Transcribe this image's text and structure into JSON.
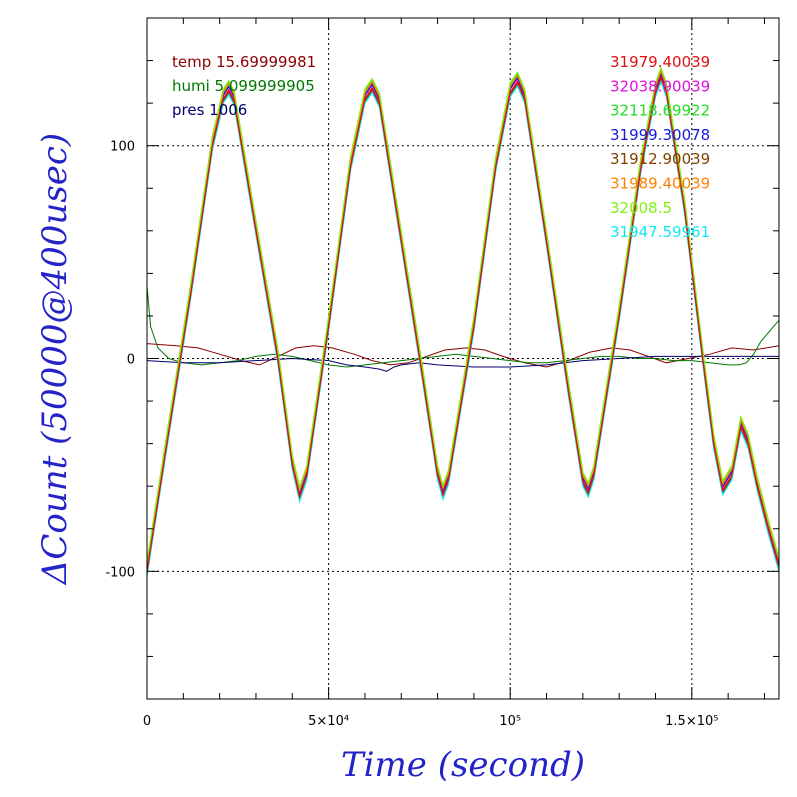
{
  "chart_data": {
    "type": "line",
    "xlabel": "Time (second)",
    "ylabel": "ΔCount (50000@400usec)",
    "xlim": [
      0,
      174000
    ],
    "ylim": [
      -160,
      160
    ],
    "x_ticks": [
      {
        "value": 0,
        "label": "0"
      },
      {
        "value": 50000,
        "label": "5×10⁴"
      },
      {
        "value": 100000,
        "label": "10⁵"
      },
      {
        "value": 150000,
        "label": "1.5×10⁵"
      }
    ],
    "y_ticks": [
      {
        "value": -100,
        "label": "-100"
      },
      {
        "value": 0,
        "label": "0"
      },
      {
        "value": 100,
        "label": "100"
      }
    ],
    "grid": "dotted at major ticks",
    "environment_legend": [
      {
        "label": "temp 15.69999981",
        "color": "#8b0000"
      },
      {
        "label": "humi 5.099999905",
        "color": "#007800"
      },
      {
        "label": "pres 1006",
        "color": "#00006e"
      }
    ],
    "counter_legend": [
      {
        "label": "31979.40039",
        "color": "#e01010"
      },
      {
        "label": "32038.90039",
        "color": "#e010e0"
      },
      {
        "label": "32118.69922",
        "color": "#20e020"
      },
      {
        "label": "31999.30078",
        "color": "#1818d8"
      },
      {
        "label": "31912.90039",
        "color": "#804000"
      },
      {
        "label": "31989.40039",
        "color": "#ff8000"
      },
      {
        "label": "32008.5",
        "color": "#80f010"
      },
      {
        "label": "31947.59961",
        "color": "#10e8f0"
      }
    ],
    "main_curve": {
      "x": [
        0,
        5000,
        12000,
        18000,
        21000,
        22500,
        24000,
        30000,
        36000,
        40000,
        42000,
        44000,
        50000,
        56000,
        60000,
        62000,
        64000,
        70000,
        76000,
        80000,
        81500,
        83000,
        90000,
        96000,
        100000,
        102000,
        104000,
        110000,
        116000,
        120000,
        121500,
        123000,
        130000,
        136000,
        140000,
        141500,
        143000,
        148000,
        153000,
        156000,
        158500,
        161000,
        163500,
        165500,
        168000,
        171000,
        174000
      ],
      "y": [
        -100,
        -45,
        30,
        100,
        122,
        126,
        121,
        60,
        0,
        -50,
        -65,
        -55,
        15,
        90,
        122,
        127,
        120,
        55,
        -10,
        -55,
        -64,
        -57,
        15,
        90,
        125,
        130,
        122,
        55,
        -15,
        -58,
        -63,
        -55,
        20,
        90,
        125,
        132,
        125,
        70,
        0,
        -40,
        -62,
        -55,
        -32,
        -40,
        -60,
        -80,
        -98
      ]
    },
    "series_offsets": [
      {
        "label": "31979.40039",
        "dy": 0
      },
      {
        "label": "32038.90039",
        "dy": 1.5
      },
      {
        "label": "32118.69922",
        "dy": 4
      },
      {
        "label": "31999.30078",
        "dy": 2
      },
      {
        "label": "31912.90039",
        "dy": -1
      },
      {
        "label": "31989.40039",
        "dy": 3
      },
      {
        "label": "32008.5",
        "dy": 4.5
      },
      {
        "label": "31947.59961",
        "dy": -2
      }
    ],
    "environment_curves": [
      {
        "label": "temp 15.69999981",
        "x": [
          0,
          8000,
          14000,
          20000,
          26000,
          31000,
          36000,
          41000,
          46000,
          51000,
          57000,
          62000,
          67000,
          72000,
          77000,
          82000,
          88000,
          93000,
          98000,
          104000,
          110000,
          116000,
          122000,
          128000,
          133000,
          138000,
          143000,
          149000,
          155000,
          161000,
          167000,
          174000
        ],
        "y": [
          7,
          6,
          5,
          2,
          -1,
          -3,
          1,
          5,
          6,
          5,
          2,
          -1,
          -3,
          -2,
          1,
          4,
          5,
          4,
          1,
          -2,
          -4,
          -1,
          3,
          5,
          4,
          1,
          -2,
          0,
          2,
          5,
          4,
          6
        ]
      },
      {
        "label": "humi 5.099999905",
        "x": [
          0,
          1000,
          3000,
          6000,
          10000,
          15000,
          20000,
          25000,
          30000,
          35000,
          40000,
          45000,
          50000,
          55000,
          60000,
          65000,
          70000,
          75000,
          80000,
          85000,
          90000,
          95000,
          100000,
          105000,
          110000,
          115000,
          120000,
          125000,
          130000,
          135000,
          140000,
          145000,
          150000,
          155000,
          160000,
          163000,
          165000,
          167000,
          169000,
          171000,
          174000
        ],
        "y": [
          34,
          15,
          5,
          0,
          -2,
          -3,
          -2,
          -1,
          1,
          2,
          1,
          -1,
          -3,
          -4,
          -3,
          -2,
          -1,
          0,
          1,
          2,
          1,
          0,
          -1,
          -2,
          -2,
          -1,
          0,
          1,
          1,
          0,
          0,
          -1,
          -1,
          -2,
          -3,
          -3,
          -2,
          2,
          8,
          12,
          18
        ]
      },
      {
        "label": "pres 1006",
        "x": [
          0,
          10000,
          20000,
          30000,
          40000,
          50000,
          55000,
          60000,
          64000,
          66000,
          68000,
          70000,
          75000,
          80000,
          90000,
          100000,
          110000,
          120000,
          130000,
          140000,
          150000,
          160000,
          170000,
          174000
        ],
        "y": [
          -1,
          -2,
          -2,
          -1,
          0,
          -1,
          -3,
          -4,
          -5,
          -6,
          -4,
          -3,
          -2,
          -3,
          -4,
          -4,
          -3,
          -1,
          0,
          1,
          1,
          1,
          1,
          1
        ]
      }
    ]
  }
}
